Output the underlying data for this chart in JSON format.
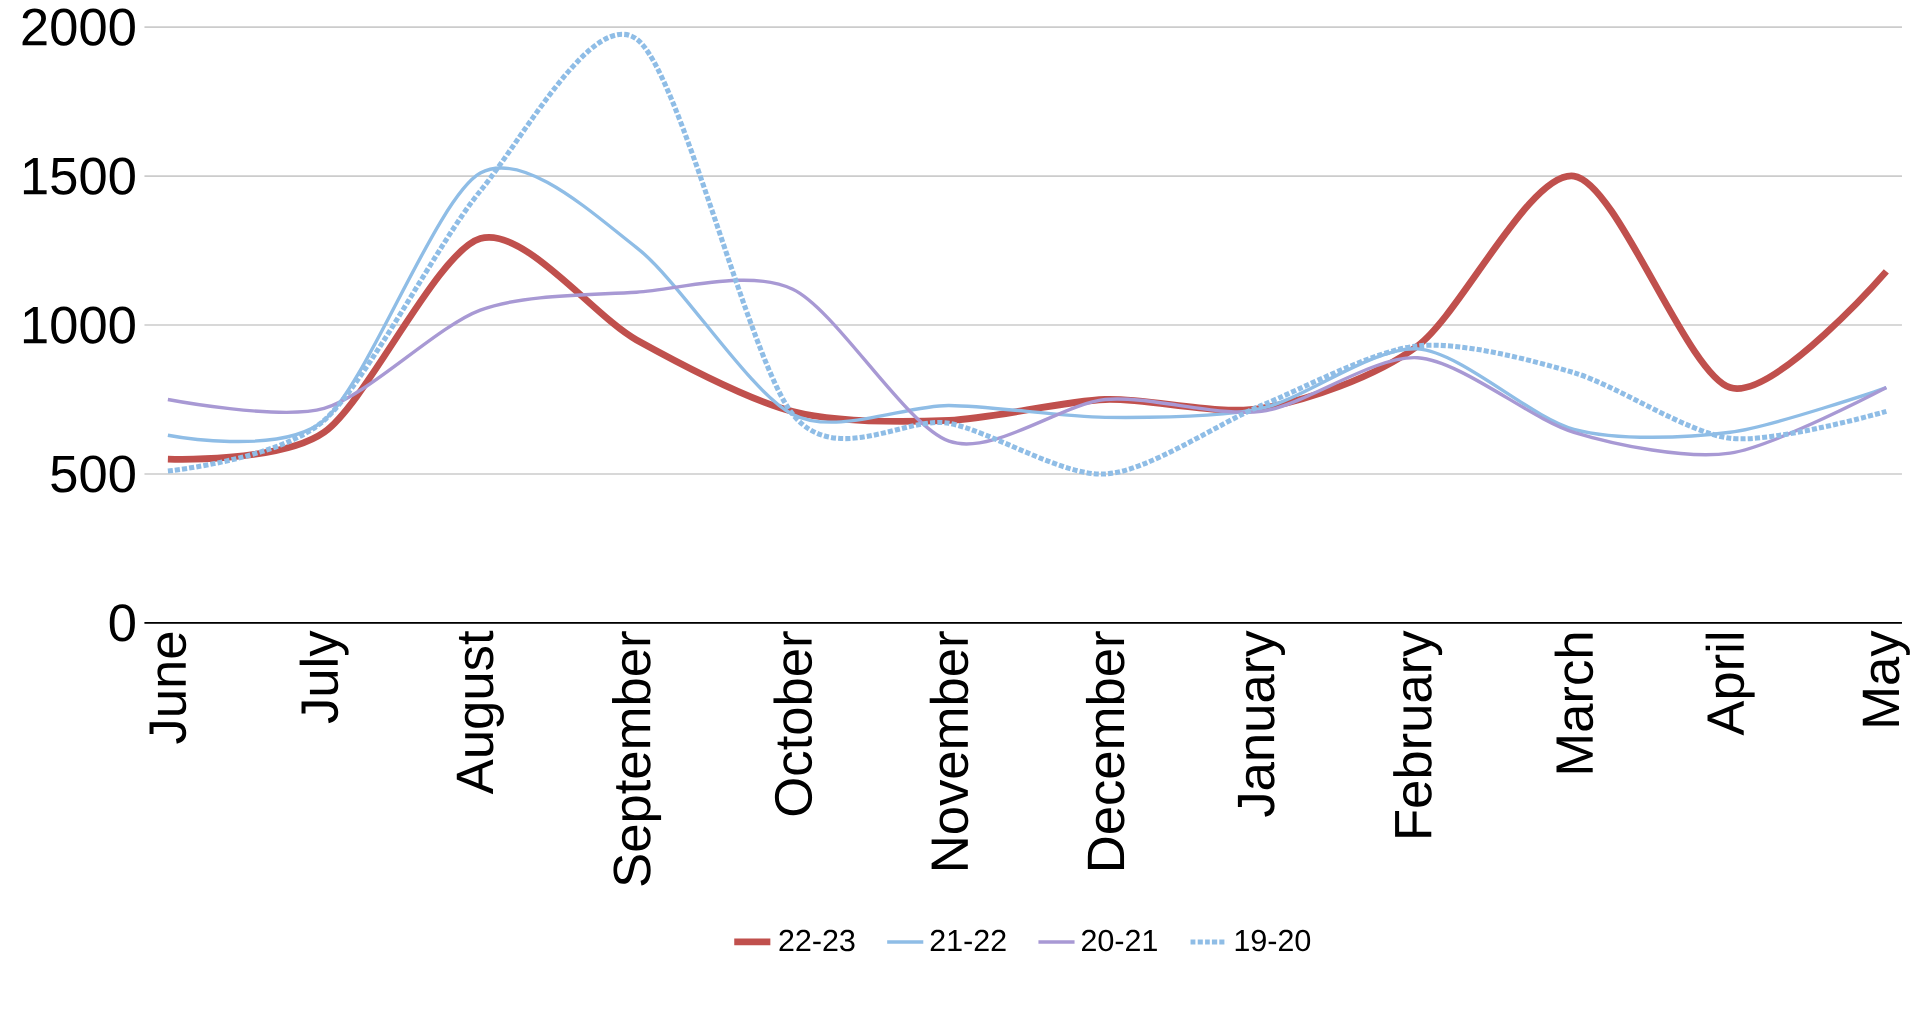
{
  "chart_data": {
    "type": "line",
    "categories": [
      "June",
      "July",
      "August",
      "September",
      "October",
      "November",
      "December",
      "January",
      "February",
      "March",
      "April",
      "May"
    ],
    "series": [
      {
        "name": "22-23",
        "color": "#c0504d",
        "line_style": "solid",
        "values": [
          550,
          640,
          1290,
          950,
          710,
          680,
          750,
          720,
          930,
          1500,
          790,
          1180
        ]
      },
      {
        "name": "21-22",
        "color": "#8fbde6",
        "line_style": "solid",
        "values": [
          630,
          680,
          1510,
          1260,
          700,
          730,
          690,
          720,
          920,
          650,
          640,
          790
        ]
      },
      {
        "name": "20-21",
        "color": "#a899d4",
        "line_style": "solid",
        "values": [
          750,
          720,
          1050,
          1110,
          1120,
          610,
          750,
          710,
          890,
          640,
          570,
          790
        ]
      },
      {
        "name": "19-20",
        "color": "#8fbde6",
        "line_style": "dotted",
        "values": [
          510,
          680,
          1450,
          1960,
          700,
          670,
          500,
          730,
          930,
          840,
          620,
          710
        ]
      }
    ],
    "ylim": [
      0,
      2000
    ],
    "yticks": [
      0,
      500,
      1000,
      1500,
      2000
    ],
    "grid": "y",
    "legend": "bottom",
    "marker": "none"
  }
}
